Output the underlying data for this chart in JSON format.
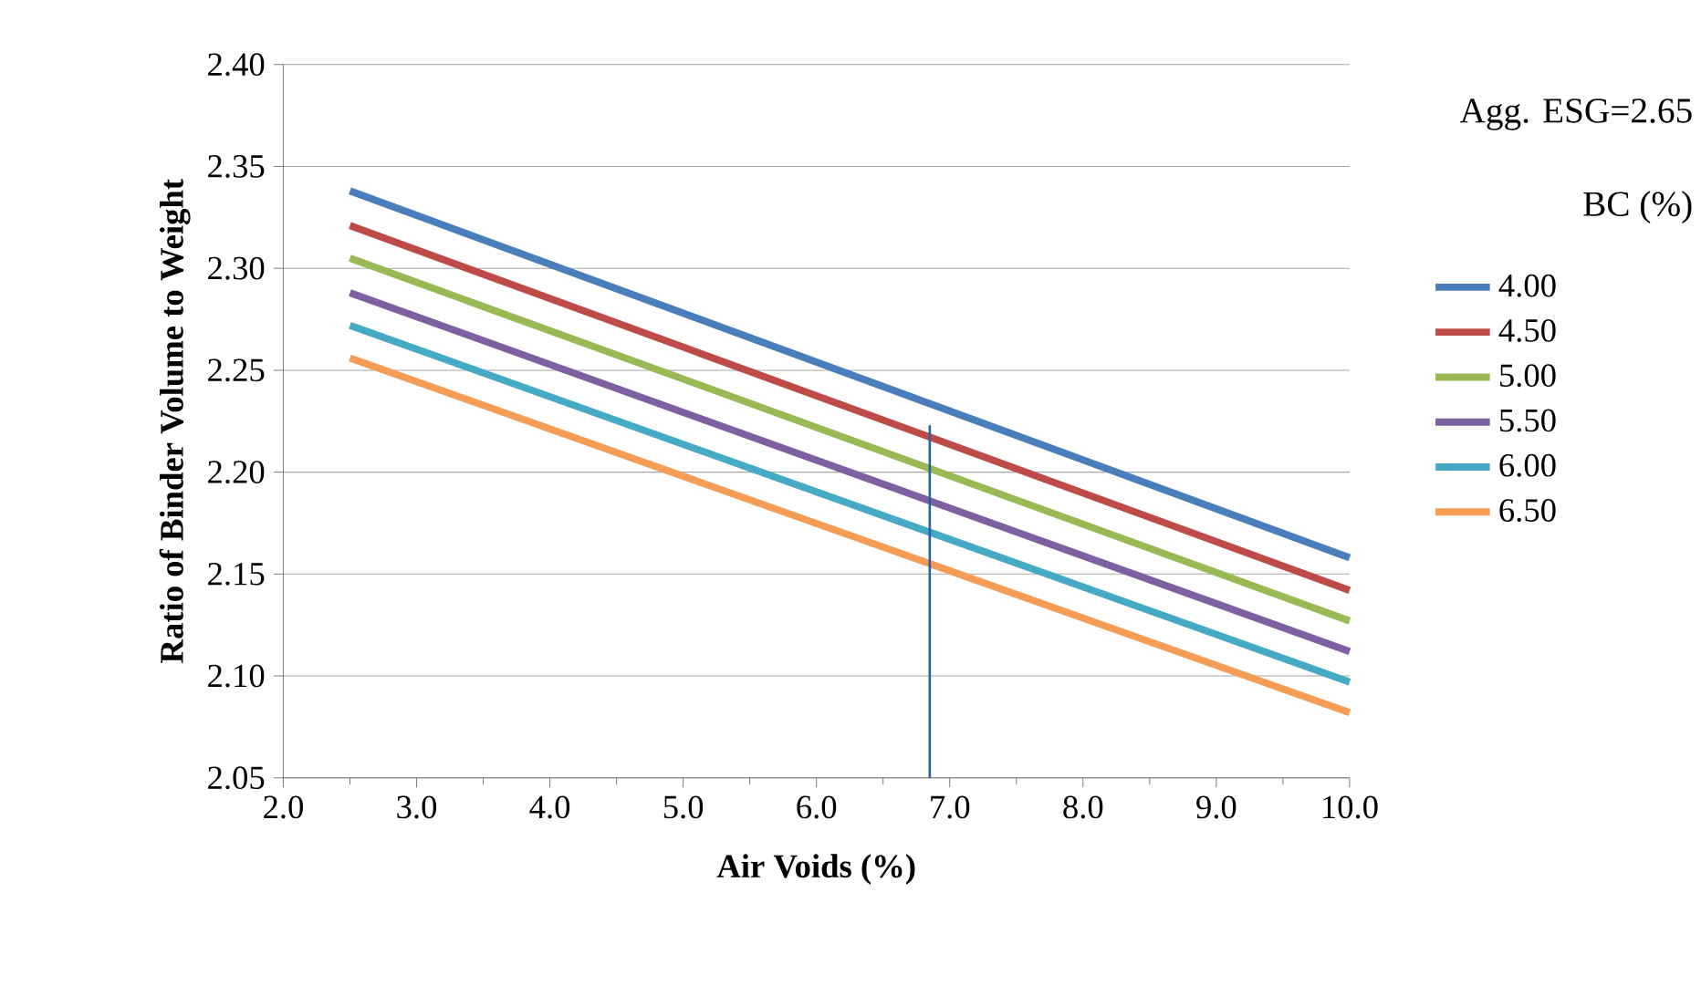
{
  "chart_data": {
    "type": "line",
    "xlabel": "Air Voids (%)",
    "ylabel": "Ratio of Binder Volume to Weight",
    "legend_title": "BC (%)",
    "annotations": [
      "Agg. ESG=2.65"
    ],
    "x": [
      2.5,
      10
    ],
    "series": [
      {
        "name": "4.00",
        "color": "#4a7ebb",
        "values": [
          2.338,
          2.158
        ]
      },
      {
        "name": "4.50",
        "color": "#be4b48",
        "values": [
          2.321,
          2.142
        ]
      },
      {
        "name": "5.00",
        "color": "#98b954",
        "values": [
          2.305,
          2.127
        ]
      },
      {
        "name": "5.50",
        "color": "#7d60a0",
        "values": [
          2.288,
          2.112
        ]
      },
      {
        "name": "6.00",
        "color": "#46aac5",
        "values": [
          2.272,
          2.097
        ]
      },
      {
        "name": "6.50",
        "color": "#f59d56",
        "values": [
          2.256,
          2.082
        ]
      },
      {
        "color": "#2e5f9e",
        "x": [
          6.85,
          6.85
        ],
        "values": [
          2.05,
          2.223
        ]
      }
    ],
    "xlim": [
      2,
      10
    ],
    "ylim": [
      2.05,
      2.4
    ],
    "xticks": [
      {
        "value": 2,
        "label": "2.0"
      },
      {
        "value": 3,
        "label": "3.0"
      },
      {
        "value": 4,
        "label": "4.0"
      },
      {
        "value": 5,
        "label": "5.0"
      },
      {
        "value": 6,
        "label": "6.0"
      },
      {
        "value": 7,
        "label": "7.0"
      },
      {
        "value": 8,
        "label": "8.0"
      },
      {
        "value": 9,
        "label": "9.0"
      },
      {
        "value": 10,
        "label": "10.0"
      }
    ],
    "yticks": [
      {
        "value": 2.05,
        "label": "2.05"
      },
      {
        "value": 2.1,
        "label": "2.10"
      },
      {
        "value": 2.15,
        "label": "2.15"
      },
      {
        "value": 2.2,
        "label": "2.20"
      },
      {
        "value": 2.25,
        "label": "2.25"
      },
      {
        "value": 2.3,
        "label": "2.30"
      },
      {
        "value": 2.35,
        "label": "2.35"
      },
      {
        "value": 2.4,
        "label": "2.40"
      }
    ],
    "grid": "y",
    "legend": "right",
    "marker": "none",
    "line_style": "solid"
  }
}
